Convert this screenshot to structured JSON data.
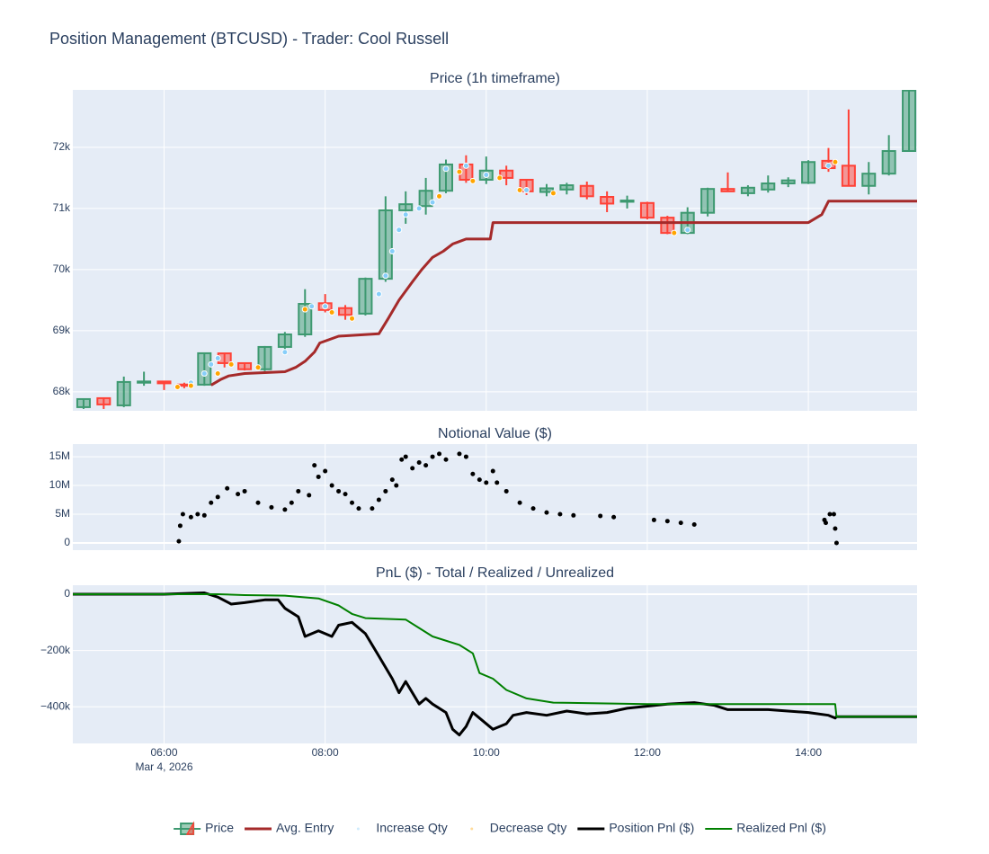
{
  "title": "Position Management (BTCUSD) - Trader: Cool Russell",
  "x_axis": {
    "xlim": [
      "2026-03-04 04:52",
      "2026-03-04 15:21"
    ],
    "xticks": [
      {
        "value": "2026-03-04 06:00",
        "label": "06:00"
      },
      {
        "value": "2026-03-04 08:00",
        "label": "08:00"
      },
      {
        "value": "2026-03-04 10:00",
        "label": "10:00"
      },
      {
        "value": "2026-03-04 12:00",
        "label": "12:00"
      },
      {
        "value": "2026-03-04 14:00",
        "label": "14:00"
      }
    ],
    "date_label": "Mar 4, 2026",
    "grid": true
  },
  "chart_data": [
    {
      "type": "candlestick",
      "title": "Price (1h timeframe)",
      "name": "Price",
      "increasing_color": "#3d9970",
      "decreasing_color": "#ff4136",
      "x": [
        "2026-03-04 05:00",
        "2026-03-04 05:15",
        "2026-03-04 05:30",
        "2026-03-04 05:45",
        "2026-03-04 06:00",
        "2026-03-04 06:15",
        "2026-03-04 06:30",
        "2026-03-04 06:45",
        "2026-03-04 07:00",
        "2026-03-04 07:15",
        "2026-03-04 07:30",
        "2026-03-04 07:45",
        "2026-03-04 08:00",
        "2026-03-04 08:15",
        "2026-03-04 08:30",
        "2026-03-04 08:45",
        "2026-03-04 09:00",
        "2026-03-04 09:15",
        "2026-03-04 09:30",
        "2026-03-04 09:45",
        "2026-03-04 10:00",
        "2026-03-04 10:15",
        "2026-03-04 10:30",
        "2026-03-04 10:45",
        "2026-03-04 11:00",
        "2026-03-04 11:15",
        "2026-03-04 11:30",
        "2026-03-04 11:45",
        "2026-03-04 12:00",
        "2026-03-04 12:15",
        "2026-03-04 12:30",
        "2026-03-04 12:45",
        "2026-03-04 13:00",
        "2026-03-04 13:15",
        "2026-03-04 13:30",
        "2026-03-04 13:45",
        "2026-03-04 14:00",
        "2026-03-04 14:15",
        "2026-03-04 14:30",
        "2026-03-04 14:45",
        "2026-03-04 15:00",
        "2026-03-04 15:15"
      ],
      "open": [
        67750,
        67897,
        67779,
        68150,
        68170,
        68120,
        68118,
        68630,
        68470,
        68370,
        68735,
        68940,
        69450,
        69370,
        69280,
        69850,
        70970,
        71040,
        71290,
        71720,
        71470,
        71620,
        71470,
        71270,
        71310,
        71370,
        71190,
        71110,
        71090,
        70850,
        70600,
        70930,
        71320,
        71250,
        71310,
        71410,
        71420,
        71780,
        71700,
        71370,
        71570,
        71940
      ],
      "high": [
        67890,
        67900,
        68250,
        68330,
        68170,
        68150,
        68640,
        68640,
        68480,
        68750,
        68980,
        69680,
        69600,
        69420,
        69870,
        71200,
        71280,
        71500,
        71800,
        71870,
        71850,
        71700,
        71480,
        71400,
        71420,
        71440,
        71280,
        71210,
        71110,
        70880,
        71020,
        71340,
        71590,
        71380,
        71540,
        71510,
        71790,
        71990,
        72620,
        71760,
        72200,
        72940
      ],
      "low": [
        67720,
        67720,
        67750,
        68100,
        68030,
        68060,
        68100,
        68400,
        68350,
        68340,
        68700,
        68900,
        69300,
        69180,
        69250,
        69800,
        70750,
        70900,
        71250,
        71420,
        71400,
        71380,
        71220,
        71200,
        71230,
        71150,
        70940,
        71000,
        70820,
        70580,
        70580,
        70870,
        71270,
        71200,
        71260,
        71350,
        71400,
        71600,
        71360,
        71230,
        71540,
        71940
      ],
      "close": [
        67882,
        67794,
        68162,
        68170,
        68140,
        68100,
        68632,
        68470,
        68370,
        68735,
        68940,
        69440,
        69340,
        69260,
        69850,
        70970,
        71070,
        71290,
        71720,
        71470,
        71620,
        71500,
        71280,
        71330,
        71380,
        71200,
        71080,
        71130,
        70850,
        70600,
        70930,
        71320,
        71280,
        71340,
        71410,
        71460,
        71760,
        71660,
        71370,
        71570,
        71940,
        72930
      ],
      "ylim": [
        67690,
        72940
      ],
      "yticks": [
        {
          "value": 68000,
          "label": "68k"
        },
        {
          "value": 69000,
          "label": "69k"
        },
        {
          "value": 70000,
          "label": "70k"
        },
        {
          "value": 71000,
          "label": "71k"
        },
        {
          "value": 72000,
          "label": "72k"
        }
      ],
      "series": [
        {
          "name": "Avg. Entry",
          "type": "line",
          "color": "#a52a2a",
          "x": [
            "2026-03-04 06:35",
            "2026-03-04 06:42",
            "2026-03-04 06:48",
            "2026-03-04 07:00",
            "2026-03-04 07:30",
            "2026-03-04 07:38",
            "2026-03-04 07:45",
            "2026-03-04 07:52",
            "2026-03-04 07:56",
            "2026-03-04 08:10",
            "2026-03-04 08:40",
            "2026-03-04 08:47",
            "2026-03-04 08:55",
            "2026-03-04 09:05",
            "2026-03-04 09:12",
            "2026-03-04 09:20",
            "2026-03-04 09:28",
            "2026-03-04 09:35",
            "2026-03-04 09:45",
            "2026-03-04 10:03",
            "2026-03-04 10:05",
            "2026-03-04 14:00",
            "2026-03-04 14:10",
            "2026-03-04 14:15",
            "2026-03-04 15:21"
          ],
          "values": [
            68110,
            68200,
            68260,
            68300,
            68330,
            68400,
            68500,
            68650,
            68800,
            68910,
            68950,
            69200,
            69500,
            69800,
            70000,
            70200,
            70300,
            70420,
            70500,
            70500,
            70770,
            70770,
            70900,
            71120,
            71120
          ]
        },
        {
          "name": "Increase Qty",
          "type": "scatter",
          "color": "#87cefa",
          "x": [
            "2026-03-04 06:20",
            "2026-03-04 06:30",
            "2026-03-04 06:35",
            "2026-03-04 06:40",
            "2026-03-04 07:30",
            "2026-03-04 07:50",
            "2026-03-04 08:00",
            "2026-03-04 08:40",
            "2026-03-04 08:45",
            "2026-03-04 08:50",
            "2026-03-04 08:55",
            "2026-03-04 09:00",
            "2026-03-04 09:10",
            "2026-03-04 09:20",
            "2026-03-04 09:30",
            "2026-03-04 09:45",
            "2026-03-04 10:00",
            "2026-03-04 10:30",
            "2026-03-04 12:30",
            "2026-03-04 14:15"
          ],
          "values": [
            68150,
            68300,
            68450,
            68550,
            68650,
            69400,
            69400,
            69600,
            69900,
            70300,
            70650,
            70900,
            71000,
            71100,
            71650,
            71700,
            71550,
            71300,
            70650,
            71700
          ]
        },
        {
          "name": "Decrease Qty",
          "type": "scatter",
          "color": "#ffa500",
          "x": [
            "2026-03-04 06:10",
            "2026-03-04 06:20",
            "2026-03-04 06:40",
            "2026-03-04 06:50",
            "2026-03-04 07:10",
            "2026-03-04 07:45",
            "2026-03-04 08:05",
            "2026-03-04 08:20",
            "2026-03-04 09:25",
            "2026-03-04 09:40",
            "2026-03-04 09:50",
            "2026-03-04 10:10",
            "2026-03-04 10:25",
            "2026-03-04 10:50",
            "2026-03-04 12:20",
            "2026-03-04 14:20"
          ],
          "values": [
            68080,
            68100,
            68300,
            68450,
            68400,
            69350,
            69300,
            69200,
            71200,
            71600,
            71450,
            71500,
            71300,
            71250,
            70600,
            71760
          ]
        }
      ]
    },
    {
      "type": "scatter",
      "title": "Notional Value ($)",
      "ylim": [
        -1250000,
        17200000
      ],
      "yticks": [
        0,
        {
          "value": 5000000,
          "label": "5M"
        },
        {
          "value": 10000000,
          "label": "10M"
        },
        {
          "value": 15000000,
          "label": "15M"
        }
      ],
      "series": [
        {
          "color": "#000000",
          "x": [
            "2026-03-04 06:11",
            "2026-03-04 06:12",
            "2026-03-04 06:14",
            "2026-03-04 06:20",
            "2026-03-04 06:25",
            "2026-03-04 06:30",
            "2026-03-04 06:35",
            "2026-03-04 06:40",
            "2026-03-04 06:47",
            "2026-03-04 06:55",
            "2026-03-04 07:00",
            "2026-03-04 07:10",
            "2026-03-04 07:20",
            "2026-03-04 07:30",
            "2026-03-04 07:35",
            "2026-03-04 07:40",
            "2026-03-04 07:48",
            "2026-03-04 07:52",
            "2026-03-04 07:55",
            "2026-03-04 08:00",
            "2026-03-04 08:05",
            "2026-03-04 08:10",
            "2026-03-04 08:15",
            "2026-03-04 08:20",
            "2026-03-04 08:25",
            "2026-03-04 08:35",
            "2026-03-04 08:40",
            "2026-03-04 08:45",
            "2026-03-04 08:50",
            "2026-03-04 08:53",
            "2026-03-04 08:57",
            "2026-03-04 09:00",
            "2026-03-04 09:05",
            "2026-03-04 09:10",
            "2026-03-04 09:15",
            "2026-03-04 09:20",
            "2026-03-04 09:25",
            "2026-03-04 09:30",
            "2026-03-04 09:40",
            "2026-03-04 09:45",
            "2026-03-04 09:50",
            "2026-03-04 09:55",
            "2026-03-04 10:00",
            "2026-03-04 10:05",
            "2026-03-04 10:08",
            "2026-03-04 10:15",
            "2026-03-04 10:25",
            "2026-03-04 10:35",
            "2026-03-04 10:45",
            "2026-03-04 10:55",
            "2026-03-04 11:05",
            "2026-03-04 11:25",
            "2026-03-04 11:35",
            "2026-03-04 12:05",
            "2026-03-04 12:15",
            "2026-03-04 12:25",
            "2026-03-04 12:35",
            "2026-03-04 14:12",
            "2026-03-04 14:13",
            "2026-03-04 14:16",
            "2026-03-04 14:19",
            "2026-03-04 14:20",
            "2026-03-04 14:21"
          ],
          "values": [
            300000,
            3000000,
            5000000,
            4500000,
            5000000,
            4800000,
            7000000,
            8000000,
            9500000,
            8500000,
            9000000,
            7000000,
            6200000,
            5800000,
            7000000,
            9000000,
            8300000,
            13500000,
            11500000,
            12500000,
            10000000,
            9000000,
            8500000,
            7000000,
            6000000,
            6000000,
            7500000,
            9000000,
            11000000,
            10000000,
            14500000,
            15000000,
            13000000,
            14000000,
            13500000,
            15000000,
            15500000,
            14500000,
            15500000,
            15000000,
            12000000,
            11000000,
            10500000,
            12500000,
            10500000,
            9000000,
            7000000,
            6000000,
            5300000,
            5000000,
            4800000,
            4700000,
            4500000,
            4000000,
            3800000,
            3500000,
            3200000,
            4000000,
            3500000,
            5000000,
            5000000,
            2500000,
            0
          ]
        }
      ]
    },
    {
      "type": "line",
      "title": "PnL ($) - Total / Realized / Unrealized",
      "ylim": [
        -530000,
        32000
      ],
      "yticks": [
        {
          "value": -400000,
          "label": "−400k"
        },
        {
          "value": -200000,
          "label": "−200k"
        },
        0
      ],
      "series": [
        {
          "name": "Position Pnl ($)",
          "color": "#000000",
          "x": [
            "2026-03-04 04:52",
            "2026-03-04 06:00",
            "2026-03-04 06:30",
            "2026-03-04 06:40",
            "2026-03-04 06:50",
            "2026-03-04 07:00",
            "2026-03-04 07:15",
            "2026-03-04 07:25",
            "2026-03-04 07:30",
            "2026-03-04 07:40",
            "2026-03-04 07:45",
            "2026-03-04 07:55",
            "2026-03-04 08:05",
            "2026-03-04 08:10",
            "2026-03-04 08:20",
            "2026-03-04 08:30",
            "2026-03-04 08:40",
            "2026-03-04 08:50",
            "2026-03-04 08:55",
            "2026-03-04 09:00",
            "2026-03-04 09:10",
            "2026-03-04 09:15",
            "2026-03-04 09:20",
            "2026-03-04 09:30",
            "2026-03-04 09:35",
            "2026-03-04 09:40",
            "2026-03-04 09:45",
            "2026-03-04 09:50",
            "2026-03-04 09:55",
            "2026-03-04 10:05",
            "2026-03-04 10:15",
            "2026-03-04 10:20",
            "2026-03-04 10:30",
            "2026-03-04 10:45",
            "2026-03-04 11:00",
            "2026-03-04 11:15",
            "2026-03-04 11:30",
            "2026-03-04 11:45",
            "2026-03-04 12:15",
            "2026-03-04 12:35",
            "2026-03-04 12:50",
            "2026-03-04 13:00",
            "2026-03-04 13:30",
            "2026-03-04 14:00",
            "2026-03-04 14:15",
            "2026-03-04 14:20",
            "2026-03-04 14:21",
            "2026-03-04 15:21"
          ],
          "values": [
            0,
            0,
            5000,
            -10000,
            -35000,
            -30000,
            -20000,
            -20000,
            -50000,
            -80000,
            -150000,
            -130000,
            -150000,
            -110000,
            -100000,
            -140000,
            -220000,
            -300000,
            -350000,
            -310000,
            -390000,
            -370000,
            -390000,
            -420000,
            -480000,
            -500000,
            -470000,
            -420000,
            -440000,
            -480000,
            -460000,
            -430000,
            -420000,
            -430000,
            -415000,
            -425000,
            -420000,
            -405000,
            -390000,
            -385000,
            -395000,
            -410000,
            -410000,
            -420000,
            -430000,
            -440000,
            -435000,
            -435000
          ]
        },
        {
          "name": "Realized Pnl ($)",
          "color": "#008000",
          "x": [
            "2026-03-04 04:52",
            "2026-03-04 06:40",
            "2026-03-04 07:00",
            "2026-03-04 07:30",
            "2026-03-04 07:55",
            "2026-03-04 08:10",
            "2026-03-04 08:20",
            "2026-03-04 08:30",
            "2026-03-04 09:00",
            "2026-03-04 09:10",
            "2026-03-04 09:20",
            "2026-03-04 09:40",
            "2026-03-04 09:50",
            "2026-03-04 09:55",
            "2026-03-04 10:05",
            "2026-03-04 10:15",
            "2026-03-04 10:30",
            "2026-03-04 10:50",
            "2026-03-04 12:00",
            "2026-03-04 14:20",
            "2026-03-04 14:21",
            "2026-03-04 15:21"
          ],
          "values": [
            0,
            0,
            -3000,
            -5000,
            -15000,
            -40000,
            -70000,
            -85000,
            -90000,
            -120000,
            -150000,
            -180000,
            -210000,
            -280000,
            -300000,
            -340000,
            -370000,
            -385000,
            -390000,
            -390000,
            -435000,
            -435000
          ]
        }
      ]
    }
  ]
}
